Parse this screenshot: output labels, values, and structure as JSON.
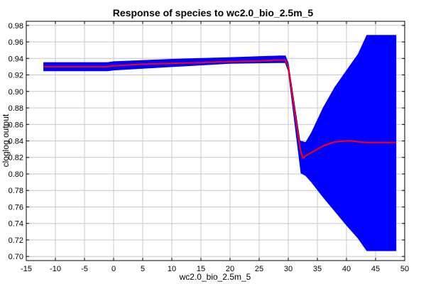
{
  "chart_data": {
    "type": "area",
    "title": "Response of species to wc2.0_bio_2.5m_5",
    "xlabel": "wc2.0_bio_2.5m_5",
    "ylabel": "cloglog output",
    "xlim": [
      -15,
      50
    ],
    "ylim": [
      0.695,
      0.985
    ],
    "xticks": [
      -15,
      -10,
      -5,
      0,
      5,
      10,
      15,
      20,
      25,
      30,
      35,
      40,
      45,
      50
    ],
    "yticks": [
      0.7,
      0.72,
      0.74,
      0.76,
      0.78,
      0.8,
      0.82,
      0.84,
      0.86,
      0.88,
      0.9,
      0.92,
      0.94,
      0.96,
      0.98
    ],
    "grid": true,
    "series": [
      {
        "role": "band-upper",
        "color": "#0000ff",
        "x": [
          -12,
          -1,
          0,
          10,
          20,
          28.5,
          29.5,
          30,
          32,
          33,
          34,
          36,
          38,
          40,
          42,
          43.5,
          48.5
        ],
        "y": [
          0.935,
          0.935,
          0.936,
          0.939,
          0.941,
          0.943,
          0.943,
          0.934,
          0.84,
          0.838,
          0.85,
          0.88,
          0.905,
          0.925,
          0.945,
          0.968,
          0.968
        ]
      },
      {
        "role": "band-lower",
        "color": "#0000ff",
        "x": [
          -12,
          -1,
          0,
          10,
          20,
          29.5,
          30,
          32.2,
          33,
          34,
          36,
          38,
          40,
          42,
          43.5,
          48.5
        ],
        "y": [
          0.925,
          0.925,
          0.926,
          0.93,
          0.934,
          0.935,
          0.925,
          0.801,
          0.798,
          0.79,
          0.772,
          0.755,
          0.738,
          0.722,
          0.707,
          0.707
        ]
      },
      {
        "role": "mean",
        "color": "#ff0000",
        "x": [
          -12,
          -1,
          0,
          5,
          10,
          15,
          20,
          25,
          28,
          29.5,
          30,
          31,
          32,
          32.5,
          33,
          34,
          35,
          36,
          38,
          40,
          41,
          42,
          43.5,
          45,
          48.5
        ],
        "y": [
          0.93,
          0.93,
          0.931,
          0.933,
          0.934,
          0.935,
          0.936,
          0.937,
          0.938,
          0.938,
          0.93,
          0.88,
          0.832,
          0.819,
          0.822,
          0.826,
          0.83,
          0.834,
          0.839,
          0.84,
          0.84,
          0.839,
          0.838,
          0.838,
          0.838
        ]
      }
    ]
  }
}
